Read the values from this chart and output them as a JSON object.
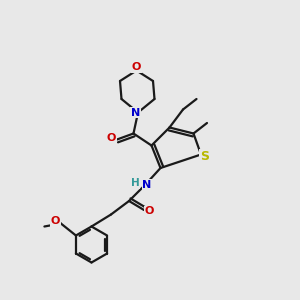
{
  "bg_color": "#e8e8e8",
  "bond_color": "#1a1a1a",
  "bond_width": 1.6,
  "atom_colors": {
    "S": "#b8b800",
    "N": "#0000cc",
    "O": "#cc0000",
    "C": "#1a1a1a",
    "H": "#339999"
  },
  "font_size": 8.0,
  "fig_width": 3.0,
  "fig_height": 3.0
}
